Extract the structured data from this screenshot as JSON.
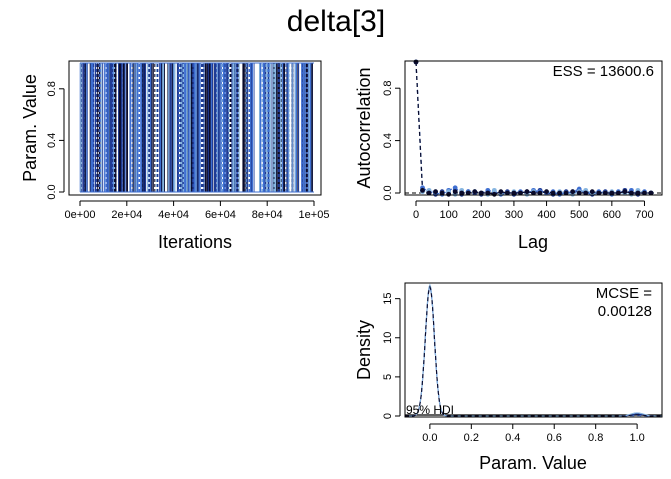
{
  "figure": {
    "title": "delta[3]"
  },
  "chart_data": [
    {
      "type": "line",
      "name": "trace-plot",
      "xlabel": "Iterations",
      "ylabel": "Param. Value",
      "xlim": [
        0,
        100000
      ],
      "ylim": [
        0,
        1
      ],
      "xticks": [
        0,
        20000,
        40000,
        60000,
        80000,
        100000
      ],
      "xtick_labels": [
        "0e+00",
        "2e+04",
        "4e+04",
        "6e+04",
        "8e+04",
        "1e+05"
      ],
      "yticks": [
        0,
        0.4,
        0.8
      ],
      "ytick_labels": [
        "0.0",
        "0.4",
        "0.8"
      ],
      "chain_colors": [
        "#1f3a93",
        "#3f6fd1",
        "#87b5e0",
        "#0a0a2a"
      ],
      "values_observed": [
        0,
        1
      ],
      "grid": false
    },
    {
      "type": "line",
      "name": "autocorrelation-plot",
      "xlabel": "Lag",
      "ylabel": "Autocorrelation",
      "xlim": [
        0,
        720
      ],
      "ylim": [
        0,
        1
      ],
      "xticks": [
        0,
        100,
        200,
        300,
        400,
        500,
        600,
        700
      ],
      "xtick_labels": [
        "0",
        "100",
        "200",
        "300",
        "400",
        "500",
        "600",
        "700"
      ],
      "yticks": [
        0,
        0.4,
        0.8
      ],
      "ytick_labels": [
        "0.0",
        "0.4",
        "0.8"
      ],
      "annotation": "ESS = 13600.6",
      "lags": [
        0,
        20,
        40,
        60,
        80,
        100,
        120,
        140,
        160,
        180,
        200,
        220,
        240,
        260,
        280,
        300,
        320,
        340,
        360,
        380,
        400,
        420,
        440,
        460,
        480,
        500,
        520,
        540,
        560,
        580,
        600,
        620,
        640,
        660,
        680,
        700,
        720
      ],
      "series": [
        {
          "color": "#1f3a93",
          "values": [
            1.0,
            0.02,
            0.0,
            -0.01,
            0.01,
            0.0,
            0.02,
            -0.01,
            0.01,
            0.0,
            -0.01,
            0.01,
            0.0,
            0.0,
            0.01,
            -0.01,
            0.0,
            0.01,
            0.0,
            0.02,
            0.0,
            -0.01,
            0.0,
            0.01,
            0.0,
            0.02,
            0.0,
            -0.01,
            0.0,
            0.01,
            0.0,
            0.0,
            0.02,
            0.0,
            -0.01,
            0.0,
            0.0
          ]
        },
        {
          "color": "#3f6fd1",
          "values": [
            1.0,
            0.04,
            0.01,
            0.0,
            -0.01,
            0.02,
            0.04,
            0.0,
            0.01,
            0.01,
            0.0,
            0.02,
            0.01,
            -0.01,
            0.0,
            0.0,
            0.01,
            0.0,
            0.02,
            0.01,
            0.0,
            0.01,
            -0.01,
            0.0,
            0.01,
            0.03,
            0.0,
            0.0,
            0.01,
            0.0,
            -0.01,
            0.01,
            0.0,
            0.02,
            0.0,
            0.01,
            0.0
          ]
        },
        {
          "color": "#87b5e0",
          "values": [
            1.0,
            0.01,
            0.02,
            0.01,
            0.0,
            0.01,
            -0.01,
            0.02,
            0.0,
            0.01,
            0.0,
            -0.01,
            0.02,
            0.0,
            0.0,
            0.01,
            0.0,
            -0.01,
            0.01,
            0.0,
            0.01,
            0.0,
            0.01,
            0.0,
            -0.01,
            0.01,
            0.02,
            0.0,
            0.0,
            0.0,
            0.01,
            0.0,
            0.0,
            -0.01,
            0.02,
            0.0,
            0.0
          ]
        },
        {
          "color": "#0a0a2a",
          "values": [
            1.0,
            0.02,
            0.0,
            0.01,
            0.0,
            -0.01,
            0.01,
            0.0,
            0.0,
            0.01,
            0.0,
            0.0,
            -0.01,
            0.01,
            0.0,
            0.0,
            0.0,
            0.01,
            0.0,
            0.0,
            0.01,
            0.0,
            0.0,
            0.0,
            0.01,
            0.0,
            0.0,
            0.01,
            0.0,
            0.0,
            0.0,
            0.0,
            0.01,
            0.0,
            0.0,
            0.0,
            0.0
          ]
        }
      ],
      "grid": false
    },
    {
      "type": "line",
      "name": "density-plot",
      "xlabel": "Param. Value",
      "ylabel": "Density",
      "xlim": [
        -0.12,
        1.12
      ],
      "ylim": [
        0,
        17
      ],
      "xticks": [
        0,
        0.2,
        0.4,
        0.6,
        0.8,
        1.0
      ],
      "xtick_labels": [
        "0.0",
        "0.2",
        "0.4",
        "0.6",
        "0.8",
        "1.0"
      ],
      "yticks": [
        0,
        5,
        10,
        15
      ],
      "ytick_labels": [
        "0",
        "5",
        "10",
        "15"
      ],
      "annotation_lines": [
        "MCSE =",
        "0.00128"
      ],
      "hdi_label": "95% HDI",
      "peaks": [
        {
          "center": 0.0,
          "height": 16.6,
          "sd": 0.022
        },
        {
          "center": 1.0,
          "height": 0.25,
          "sd": 0.03
        }
      ],
      "series_colors": [
        "#1f3a93",
        "#3f6fd1",
        "#87b5e0",
        "#0a0a2a"
      ],
      "grid": false
    }
  ]
}
